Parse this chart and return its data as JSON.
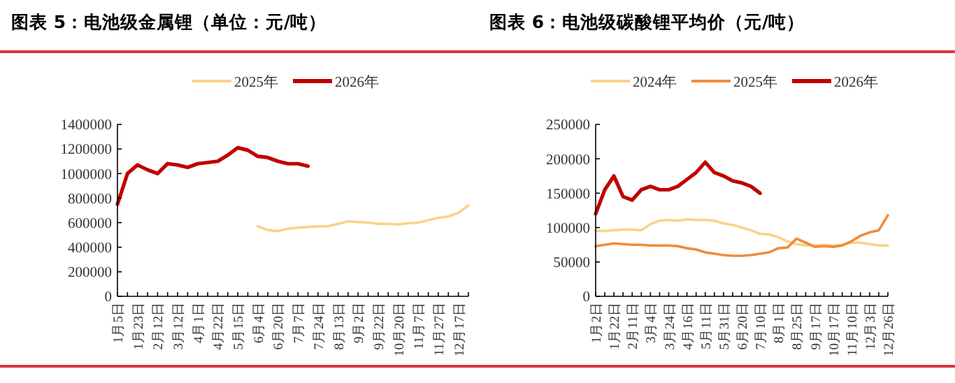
{
  "chart_data": [
    {
      "type": "line",
      "title": "图表 5：电池级金属锂（单位：元/吨）",
      "legend": "top",
      "categories": [
        "1月5日",
        null,
        "1月23日",
        null,
        "2月12日",
        null,
        "3月12日",
        null,
        "4月1日",
        null,
        "4月22日",
        null,
        "5月15日",
        null,
        "6月4日",
        null,
        "6月20日",
        null,
        "7月7日",
        null,
        "7月24日",
        null,
        "8月13日",
        null,
        "9月2日",
        null,
        "9月22日",
        null,
        "10月20日",
        null,
        "11月7日",
        null,
        "11月27日",
        null,
        "12月17日",
        null
      ],
      "ylim": [
        0,
        1400000
      ],
      "yticks": [
        0,
        200000,
        400000,
        600000,
        800000,
        1000000,
        1200000,
        1400000
      ],
      "series": [
        {
          "name": "2025年",
          "color": "#f9d38b",
          "values": [
            null,
            null,
            null,
            null,
            null,
            null,
            null,
            null,
            null,
            null,
            null,
            null,
            null,
            null,
            570000,
            540000,
            530000,
            550000,
            560000,
            565000,
            570000,
            570000,
            590000,
            610000,
            605000,
            600000,
            590000,
            590000,
            585000,
            595000,
            600000,
            620000,
            640000,
            650000,
            680000,
            740000
          ]
        },
        {
          "name": "2026年",
          "color": "#c00000",
          "values": [
            750000,
            1000000,
            1070000,
            1030000,
            1000000,
            1080000,
            1070000,
            1050000,
            1080000,
            1090000,
            1100000,
            1150000,
            1210000,
            1190000,
            1140000,
            1130000,
            1100000,
            1080000,
            1080000,
            1060000,
            null,
            null,
            null,
            null,
            null,
            null,
            null,
            null,
            null,
            null,
            null,
            null,
            null,
            null,
            null,
            null
          ]
        }
      ]
    },
    {
      "type": "line",
      "title": "图表 6：电池级碳酸锂平均价（元/吨）",
      "legend": "top",
      "categories": [
        "1月2日",
        null,
        "1月22日",
        null,
        "2月11日",
        null,
        "3月4日",
        null,
        "3月24日",
        null,
        "4月16日",
        null,
        "5月11日",
        null,
        "5月31日",
        null,
        "6月20日",
        null,
        "7月10日",
        null,
        "8月1日",
        null,
        "8月25日",
        null,
        "9月17日",
        null,
        "10月17日",
        null,
        "11月10日",
        null,
        "12月3日",
        null,
        "12月26日"
      ],
      "ylim": [
        0,
        250000
      ],
      "yticks": [
        0,
        50000,
        100000,
        150000,
        200000,
        250000
      ],
      "series": [
        {
          "name": "2024年",
          "color": "#f9d38b",
          "values": [
            95000,
            95000,
            96000,
            97000,
            97000,
            96000,
            105000,
            110000,
            111000,
            110000,
            112000,
            111000,
            111000,
            110000,
            106000,
            104000,
            100000,
            96000,
            91000,
            90000,
            86000,
            80000,
            76000,
            74000,
            74000,
            75000,
            74000,
            75000,
            78000,
            78000,
            76000,
            74000,
            74000
          ]
        },
        {
          "name": "2025年",
          "color": "#f08c3c",
          "values": [
            73000,
            75000,
            77000,
            76000,
            75000,
            75000,
            74000,
            74000,
            74000,
            73000,
            70000,
            68000,
            64000,
            62000,
            60000,
            59000,
            59000,
            60000,
            62000,
            64000,
            70000,
            71000,
            84000,
            78000,
            72000,
            73000,
            72000,
            74000,
            80000,
            88000,
            93000,
            96000,
            118000
          ]
        },
        {
          "name": "2026年",
          "color": "#c00000",
          "values": [
            120000,
            155000,
            175000,
            145000,
            140000,
            155000,
            160000,
            155000,
            155000,
            160000,
            170000,
            180000,
            195000,
            180000,
            175000,
            168000,
            165000,
            160000,
            150000,
            null,
            null,
            null,
            null,
            null,
            null,
            null,
            null,
            null,
            null,
            null,
            null,
            null,
            null
          ]
        }
      ]
    }
  ]
}
